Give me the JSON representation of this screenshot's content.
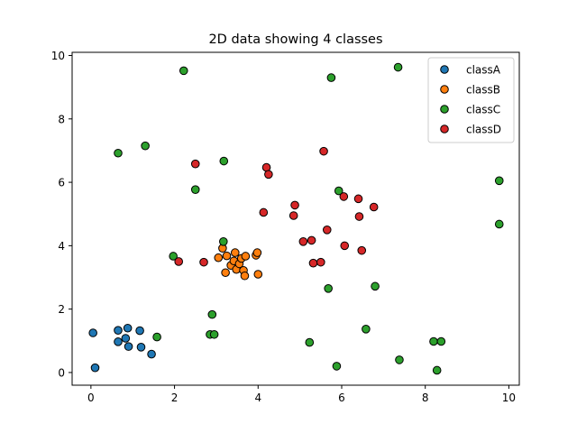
{
  "chart_data": {
    "type": "scatter",
    "title": "2D data showing 4 classes",
    "xlabel": "",
    "ylabel": "",
    "xlim": [
      -0.45,
      10.25
    ],
    "ylim": [
      -0.4,
      10.1
    ],
    "xticks": [
      0,
      2,
      4,
      6,
      8,
      10
    ],
    "yticks": [
      0,
      2,
      4,
      6,
      8,
      10
    ],
    "grid": false,
    "legend_position": "top-right",
    "series": [
      {
        "name": "classA",
        "color": "#1f77b4",
        "points": [
          [
            0.05,
            1.25
          ],
          [
            0.1,
            0.15
          ],
          [
            0.65,
            1.33
          ],
          [
            0.65,
            0.97
          ],
          [
            0.83,
            1.08
          ],
          [
            0.88,
            1.4
          ],
          [
            0.9,
            0.82
          ],
          [
            1.17,
            1.32
          ],
          [
            1.2,
            0.8
          ],
          [
            1.45,
            0.58
          ]
        ]
      },
      {
        "name": "classB",
        "color": "#ff7f0e",
        "points": [
          [
            3.05,
            3.62
          ],
          [
            3.15,
            3.92
          ],
          [
            3.22,
            3.15
          ],
          [
            3.25,
            3.68
          ],
          [
            3.35,
            3.38
          ],
          [
            3.42,
            3.52
          ],
          [
            3.45,
            3.78
          ],
          [
            3.48,
            3.25
          ],
          [
            3.55,
            3.43
          ],
          [
            3.6,
            3.6
          ],
          [
            3.65,
            3.22
          ],
          [
            3.7,
            3.67
          ],
          [
            3.68,
            3.05
          ],
          [
            3.95,
            3.7
          ],
          [
            3.98,
            3.78
          ],
          [
            4.0,
            3.1
          ]
        ]
      },
      {
        "name": "classC",
        "color": "#2ca02c",
        "points": [
          [
            0.65,
            6.92
          ],
          [
            1.3,
            7.15
          ],
          [
            1.58,
            1.12
          ],
          [
            1.97,
            3.67
          ],
          [
            2.22,
            9.52
          ],
          [
            2.5,
            5.77
          ],
          [
            2.85,
            1.2
          ],
          [
            2.9,
            1.83
          ],
          [
            2.95,
            1.2
          ],
          [
            3.18,
            6.67
          ],
          [
            3.17,
            4.13
          ],
          [
            5.23,
            0.95
          ],
          [
            5.75,
            9.3
          ],
          [
            5.68,
            2.65
          ],
          [
            5.88,
            0.2
          ],
          [
            5.93,
            5.73
          ],
          [
            6.58,
            1.37
          ],
          [
            6.8,
            2.72
          ],
          [
            7.35,
            9.63
          ],
          [
            7.38,
            0.4
          ],
          [
            8.2,
            0.98
          ],
          [
            8.38,
            0.98
          ],
          [
            8.28,
            0.07
          ],
          [
            9.77,
            6.05
          ],
          [
            9.77,
            4.68
          ]
        ]
      },
      {
        "name": "classD",
        "color": "#d62728",
        "points": [
          [
            2.1,
            3.5
          ],
          [
            2.5,
            6.58
          ],
          [
            2.7,
            3.48
          ],
          [
            4.13,
            5.05
          ],
          [
            4.2,
            6.47
          ],
          [
            4.25,
            6.25
          ],
          [
            4.85,
            4.95
          ],
          [
            4.88,
            5.28
          ],
          [
            5.08,
            4.13
          ],
          [
            5.28,
            4.17
          ],
          [
            5.32,
            3.45
          ],
          [
            5.5,
            3.48
          ],
          [
            5.57,
            6.98
          ],
          [
            5.65,
            4.5
          ],
          [
            6.05,
            5.55
          ],
          [
            6.07,
            4.0
          ],
          [
            6.4,
            5.48
          ],
          [
            6.42,
            4.92
          ],
          [
            6.48,
            3.85
          ],
          [
            6.77,
            5.22
          ]
        ]
      }
    ]
  }
}
